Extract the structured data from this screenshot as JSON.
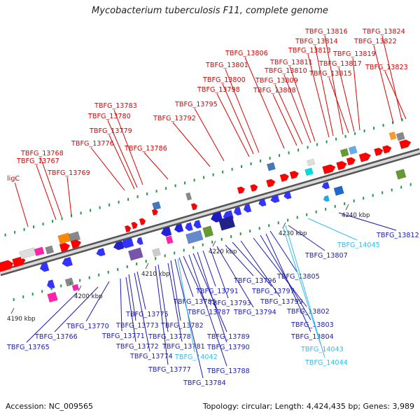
{
  "title": "Mycobacterium tuberculosis F11, complete genome",
  "footer": {
    "accession": "Accession: NC_009565",
    "summary": "Topology: circular; Length: 4,424,435 bp; Genes: 3,989"
  },
  "colors": {
    "forward_label": "#dd0000",
    "reverse_label": "#1a1ab8",
    "rna_label": "#33bbee",
    "backbone": "#888888",
    "tick": "#229944"
  },
  "scale_labels": [
    "4190 kbp",
    "4200 kbp",
    "4210 kbp",
    "4220 kbp",
    "4230 kbp",
    "4240 kbp"
  ],
  "top_labels": [
    "ligC",
    "TBFG_13768",
    "TBFG_13767",
    "TBFG_13769",
    "TBFG_13776",
    "TBFG_13779",
    "TBFG_13780",
    "TBFG_13783",
    "TBFG_13786",
    "TBFG_13792",
    "TBFG_13795",
    "TBFG_13798",
    "TBFG_13800",
    "TBFG_13801",
    "TBFG_13806",
    "TBFG_13808",
    "TBFG_13809",
    "TBFG_13810",
    "TBFG_13811",
    "TBFG_13813",
    "TBFG_13814",
    "TBFG_13816",
    "TBFG_13815",
    "TBFG_13817",
    "TBFG_13819",
    "TBFG_13822",
    "TBFG_13823",
    "TBFG_13824"
  ],
  "bottom_labels": [
    "TBFG_13765",
    "TBFG_13766",
    "TBFG_13770",
    "TBFG_13771",
    "TBFG_13772",
    "TBFG_13773",
    "TBFG_13774",
    "TBFG_13775",
    "TBFG_13777",
    "TBFG_13778",
    "TBFG_13781",
    "TBFG_13782",
    "TBFG_13784",
    "TBFG_13785",
    "TBFG_13787",
    "TBFG_13788",
    "TBFG_13789",
    "TBFG_13790",
    "TBFG_13791",
    "TBFG_13793",
    "TBFG_13794",
    "TBFG_13796",
    "TBFG_13797",
    "TBFG_13799",
    "TBFG_13802",
    "TBFG_13803",
    "TBFG_13804",
    "TBFG_13805",
    "TBFG_13807",
    "TBFG_13812",
    "TBFG_14042",
    "TBFG_14043",
    "TBFG_14044",
    "TBFG_14045"
  ],
  "rna_labels": [
    "TBFG_14042",
    "TBFG_14043",
    "TBFG_14044",
    "TBFG_14045"
  ]
}
